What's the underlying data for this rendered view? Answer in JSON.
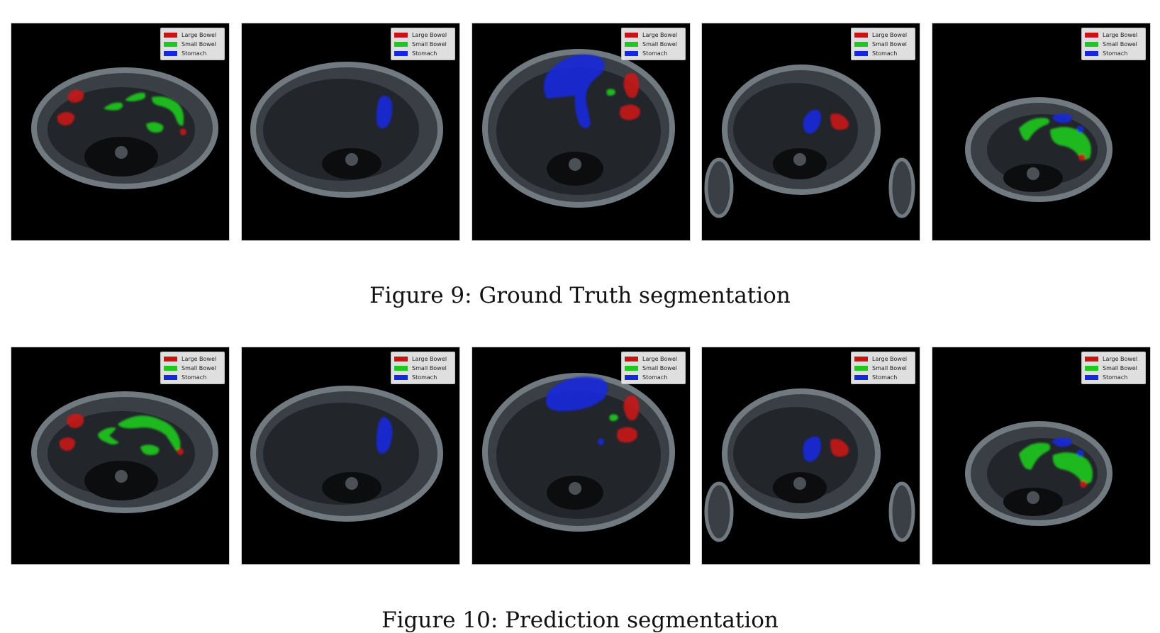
{
  "legend": {
    "items": [
      {
        "label": "Large Bowel",
        "color": "#c81414"
      },
      {
        "label": "Small Bowel",
        "color": "#1ec81e"
      },
      {
        "label": "Stomach",
        "color": "#1428dc"
      }
    ]
  },
  "figures": [
    {
      "caption": "Figure 9: Ground Truth segmentation",
      "panel_count": 5
    },
    {
      "caption": "Figure 10: Prediction segmentation",
      "panel_count": 5
    }
  ]
}
